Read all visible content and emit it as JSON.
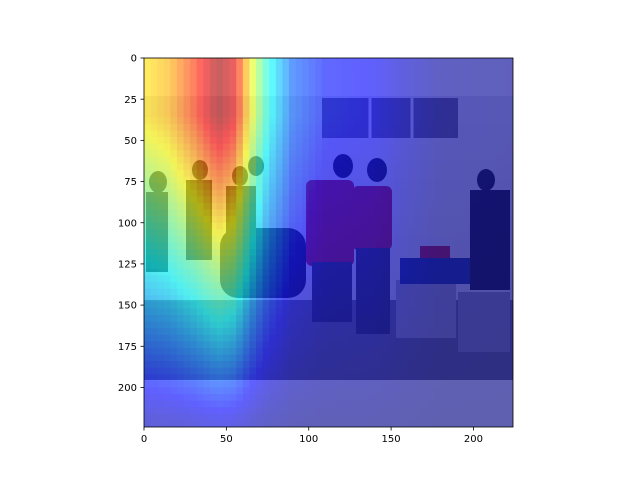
{
  "chart_data": {
    "type": "heatmap",
    "title": "",
    "xlabel": "",
    "ylabel": "",
    "xlim": [
      0,
      224
    ],
    "ylim": [
      224,
      0
    ],
    "x_ticks": [
      0,
      50,
      100,
      150,
      200
    ],
    "y_ticks": [
      0,
      25,
      50,
      75,
      100,
      125,
      150,
      175,
      200
    ],
    "x_tick_labels": [
      "0",
      "50",
      "100",
      "150",
      "200"
    ],
    "y_tick_labels": [
      "0",
      "25",
      "50",
      "75",
      "100",
      "125",
      "150",
      "175",
      "200"
    ],
    "photo_extent_y": [
      23,
      195
    ],
    "colormap": "jet",
    "heat_column_profile": [
      {
        "x": 0,
        "v": 0.65
      },
      {
        "x": 15,
        "v": 0.7
      },
      {
        "x": 30,
        "v": 0.82
      },
      {
        "x": 45,
        "v": 0.97
      },
      {
        "x": 55,
        "v": 0.9
      },
      {
        "x": 65,
        "v": 0.62
      },
      {
        "x": 75,
        "v": 0.4
      },
      {
        "x": 90,
        "v": 0.22
      },
      {
        "x": 110,
        "v": 0.14
      },
      {
        "x": 140,
        "v": 0.12
      },
      {
        "x": 160,
        "v": 0.07
      },
      {
        "x": 180,
        "v": 0.03
      },
      {
        "x": 224,
        "v": 0.02
      }
    ],
    "heat_vertical_focus": {
      "y": 35,
      "strength": 1.0,
      "falloff_y": 175
    }
  }
}
